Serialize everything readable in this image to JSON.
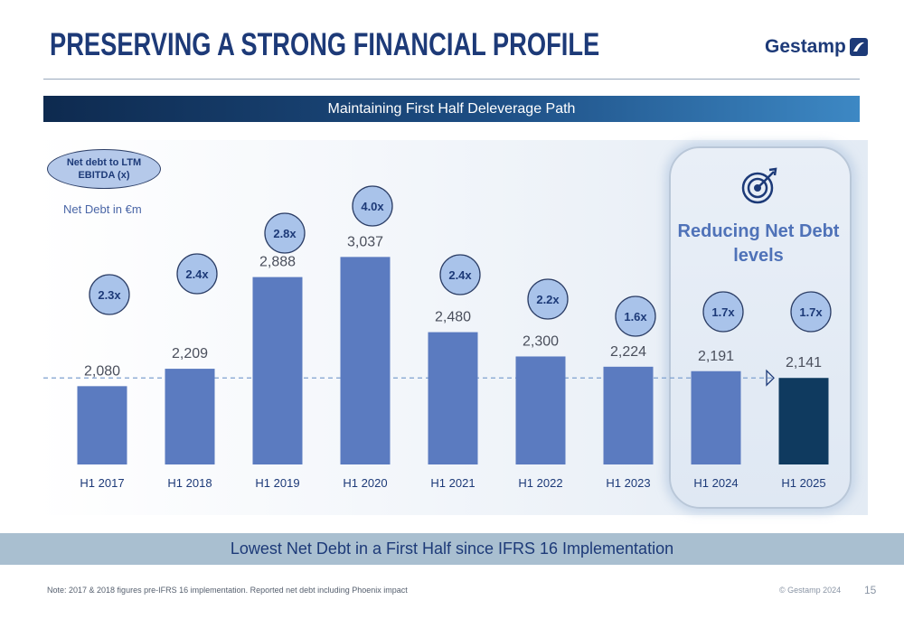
{
  "header": {
    "title": "PRESERVING A STRONG FINANCIAL PROFILE",
    "logo_text": "Gestamp"
  },
  "banner": {
    "text": "Maintaining First Half Deleverage Path"
  },
  "legend": {
    "oval_text": "Net debt to LTM EBITDA (x)",
    "unit_text": "Net Debt in €m"
  },
  "highlight": {
    "title": "Reducing Net Debt levels",
    "icon": "target-icon"
  },
  "footer": {
    "banner_text": "Lowest Net Debt in a First Half since IFRS 16 Implementation",
    "note": "Note: 2017 & 2018 figures pre-IFRS 16 implementation. Reported net debt including Phoenix impact",
    "copyright": "© Gestamp 2024",
    "page_number": "15"
  },
  "colors": {
    "bar": "#5b7bc0",
    "bar_highlight": "#0f3a5f",
    "bubble": "#a9c3ea",
    "bubble_border": "#2c3e66",
    "reference_line": "#7fa1cf",
    "title": "#1d3a78"
  },
  "chart_data": {
    "type": "bar",
    "categories": [
      "H1 2017",
      "H1 2018",
      "H1 2019",
      "H1 2020",
      "H1 2021",
      "H1 2022",
      "H1 2023",
      "H1 2024",
      "H1 2025"
    ],
    "values": [
      2080,
      2209,
      2888,
      3037,
      2480,
      2300,
      2224,
      2191,
      2141
    ],
    "value_labels": [
      "2,080",
      "2,209",
      "2,888",
      "3,037",
      "2,480",
      "2,300",
      "2,224",
      "2,191",
      "2,141"
    ],
    "leverage_labels": [
      "2.3x",
      "2.4x",
      "2.8x",
      "4.0x",
      "2.4x",
      "2.2x",
      "1.6x",
      "1.7x",
      "1.7x"
    ],
    "leverage": [
      2.3,
      2.4,
      2.8,
      4.0,
      2.4,
      2.2,
      1.6,
      1.7,
      1.7
    ],
    "highlight_index": 8,
    "reference_value": 2141,
    "ylim": [
      1500,
      3200
    ],
    "grid": false,
    "title": "",
    "xlabel": "",
    "ylabel": ""
  }
}
